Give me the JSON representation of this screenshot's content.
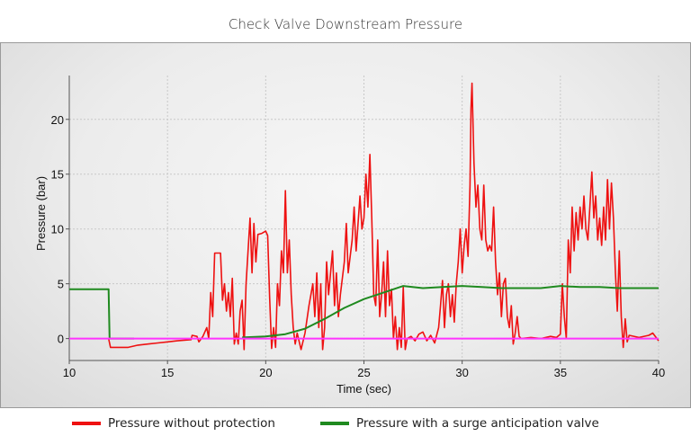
{
  "chart_data": {
    "type": "line",
    "title": "Check Valve Downstream Pressure",
    "xlabel": "Time (sec)",
    "ylabel": "Pressure (bar)",
    "xlim": [
      10,
      40
    ],
    "ylim": [
      -2,
      24
    ],
    "xticks": [
      10,
      15,
      20,
      25,
      30,
      35,
      40
    ],
    "yticks": [
      0,
      5,
      10,
      15,
      20
    ],
    "grid": true,
    "legend_position": "bottom",
    "series": [
      {
        "name": "Pressure without protection",
        "color": "#ee1111",
        "x": [
          12.0,
          12.1,
          13.0,
          13.5,
          14.0,
          14.5,
          15.0,
          15.5,
          16.2,
          16.25,
          16.5,
          16.6,
          16.8,
          17.0,
          17.1,
          17.2,
          17.3,
          17.4,
          17.7,
          17.8,
          17.9,
          18.0,
          18.1,
          18.2,
          18.3,
          18.4,
          18.5,
          18.6,
          18.7,
          18.8,
          18.9,
          19.0,
          19.1,
          19.2,
          19.3,
          19.4,
          19.5,
          19.6,
          19.8,
          20.0,
          20.1,
          20.2,
          20.3,
          20.4,
          20.5,
          20.6,
          20.7,
          20.8,
          20.9,
          21.0,
          21.1,
          21.2,
          21.3,
          21.4,
          21.5,
          21.6,
          21.8,
          22.0,
          22.2,
          22.4,
          22.5,
          22.6,
          22.7,
          22.8,
          22.9,
          23.0,
          23.1,
          23.2,
          23.4,
          23.5,
          23.6,
          23.7,
          23.8,
          24.0,
          24.1,
          24.2,
          24.4,
          24.5,
          24.6,
          24.8,
          24.9,
          25.0,
          25.1,
          25.2,
          25.3,
          25.4,
          25.5,
          25.6,
          25.7,
          25.8,
          25.9,
          26.0,
          26.1,
          26.2,
          26.3,
          26.4,
          26.5,
          26.6,
          26.7,
          26.8,
          26.9,
          27.0,
          27.1,
          27.2,
          27.4,
          27.6,
          27.8,
          28.0,
          28.2,
          28.4,
          28.6,
          28.8,
          28.9,
          29.0,
          29.1,
          29.2,
          29.3,
          29.4,
          29.5,
          29.6,
          29.7,
          29.8,
          29.9,
          30.0,
          30.1,
          30.2,
          30.3,
          30.4,
          30.45,
          30.5,
          30.6,
          30.7,
          30.8,
          30.9,
          31.0,
          31.1,
          31.2,
          31.3,
          31.4,
          31.5,
          31.6,
          31.7,
          31.8,
          31.9,
          32.0,
          32.1,
          32.2,
          32.3,
          32.4,
          32.5,
          32.6,
          32.7,
          32.8,
          32.9,
          33.0,
          33.5,
          34.0,
          34.5,
          34.8,
          35.0,
          35.1,
          35.2,
          35.3,
          35.4,
          35.5,
          35.6,
          35.7,
          35.8,
          35.9,
          36.0,
          36.1,
          36.2,
          36.3,
          36.4,
          36.5,
          36.6,
          36.7,
          36.8,
          36.9,
          37.0,
          37.1,
          37.2,
          37.3,
          37.4,
          37.5,
          37.6,
          37.7,
          37.8,
          37.9,
          38.0,
          38.1,
          38.2,
          38.3,
          38.4,
          38.5,
          39.0,
          39.5,
          39.7,
          40.0
        ],
        "y": [
          0,
          -0.8,
          -0.8,
          -0.6,
          -0.5,
          -0.4,
          -0.3,
          -0.2,
          -0.1,
          0.3,
          0.2,
          -0.3,
          0.2,
          1.0,
          0,
          4.2,
          2,
          7.8,
          7.8,
          3.5,
          5,
          2.5,
          4.2,
          2,
          5.5,
          -0.5,
          0.5,
          -0.5,
          2.5,
          3.5,
          -1,
          5,
          8,
          11,
          6,
          10.5,
          7,
          9.5,
          9.6,
          9.8,
          9.4,
          3.7,
          -0.9,
          1,
          -0.8,
          5,
          3,
          8,
          6,
          13.5,
          6,
          9,
          4,
          1,
          -0.5,
          0.5,
          -1,
          0.5,
          3,
          5,
          2,
          6,
          1,
          5,
          -1,
          1,
          7,
          4,
          8,
          3,
          6,
          2,
          4,
          7,
          10.5,
          6,
          9,
          12,
          8,
          13,
          10,
          11,
          15,
          12,
          16.8,
          11,
          4,
          3,
          9,
          2,
          4,
          7,
          2,
          8,
          3,
          4.5,
          0,
          2,
          -1,
          1,
          -0.8,
          4.7,
          -1,
          0,
          0.2,
          -0.2,
          0.4,
          0.6,
          -0.2,
          0.3,
          -0.4,
          1,
          3,
          5.3,
          1,
          4,
          5,
          2,
          4,
          1.5,
          5,
          7,
          10,
          6,
          8.5,
          10,
          7.5,
          14,
          21,
          23.3,
          16,
          12,
          14,
          10,
          9,
          14,
          9,
          8,
          8.5,
          8,
          12,
          7,
          4,
          6,
          2,
          5,
          5.5,
          2,
          1,
          3,
          -0.5,
          0.5,
          2,
          0.2,
          0,
          0.1,
          0,
          0.2,
          0.1,
          0.4,
          5,
          2,
          0,
          9,
          6,
          12,
          8,
          11.5,
          9,
          12,
          10,
          13,
          10,
          9,
          12,
          15.2,
          11,
          13,
          9,
          11,
          8.5,
          12,
          9,
          14.5,
          10,
          14.2,
          11,
          6,
          2.5,
          8,
          2,
          -0.8,
          1.8,
          -0.3,
          0.3,
          0.1,
          0.3,
          0.5,
          -0.2
        ]
      },
      {
        "name": "Pressure with a surge anticipation valve",
        "color": "#1f8a1f",
        "x": [
          10,
          12.0,
          12.05,
          13.3,
          null,
          18.8,
          20,
          21,
          22,
          23,
          24,
          25,
          26,
          27,
          28,
          29,
          30,
          31,
          32,
          33,
          34,
          35,
          36,
          37,
          38,
          39,
          40
        ],
        "y": [
          4.5,
          4.5,
          0,
          0,
          null,
          0.1,
          0.2,
          0.4,
          0.9,
          1.8,
          2.8,
          3.6,
          4.2,
          4.8,
          4.6,
          4.7,
          4.8,
          4.7,
          4.6,
          4.6,
          4.6,
          4.8,
          4.7,
          4.7,
          4.6,
          4.6,
          4.6
        ]
      },
      {
        "color": "#ff33ff",
        "x": [
          10,
          40
        ],
        "y": [
          0,
          0
        ]
      }
    ]
  }
}
